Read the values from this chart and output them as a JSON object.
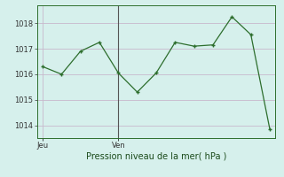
{
  "xlabel": "Pression niveau de la mer( hPa )",
  "background_color": "#d6f0ec",
  "grid_color": "#c8b8cc",
  "line_color": "#2d6e2d",
  "marker_color": "#2d6e2d",
  "ylim": [
    1013.5,
    1018.7
  ],
  "yticks": [
    1014,
    1015,
    1016,
    1017,
    1018
  ],
  "series_x": [
    0,
    1,
    2,
    3,
    4,
    5,
    6,
    7,
    8,
    9,
    10,
    11,
    12
  ],
  "series_y": [
    1016.3,
    1016.0,
    1016.9,
    1017.25,
    1016.05,
    1015.3,
    1016.05,
    1017.25,
    1017.1,
    1017.15,
    1018.25,
    1017.55,
    1013.85
  ],
  "vline_x": 4,
  "xtick_positions": [
    0,
    4
  ],
  "xtick_labels": [
    "Jeu",
    "Ven"
  ],
  "ylabel_fontsize": 7,
  "ytick_fontsize": 6,
  "xtick_fontsize": 6,
  "spine_color": "#2d6e2d"
}
